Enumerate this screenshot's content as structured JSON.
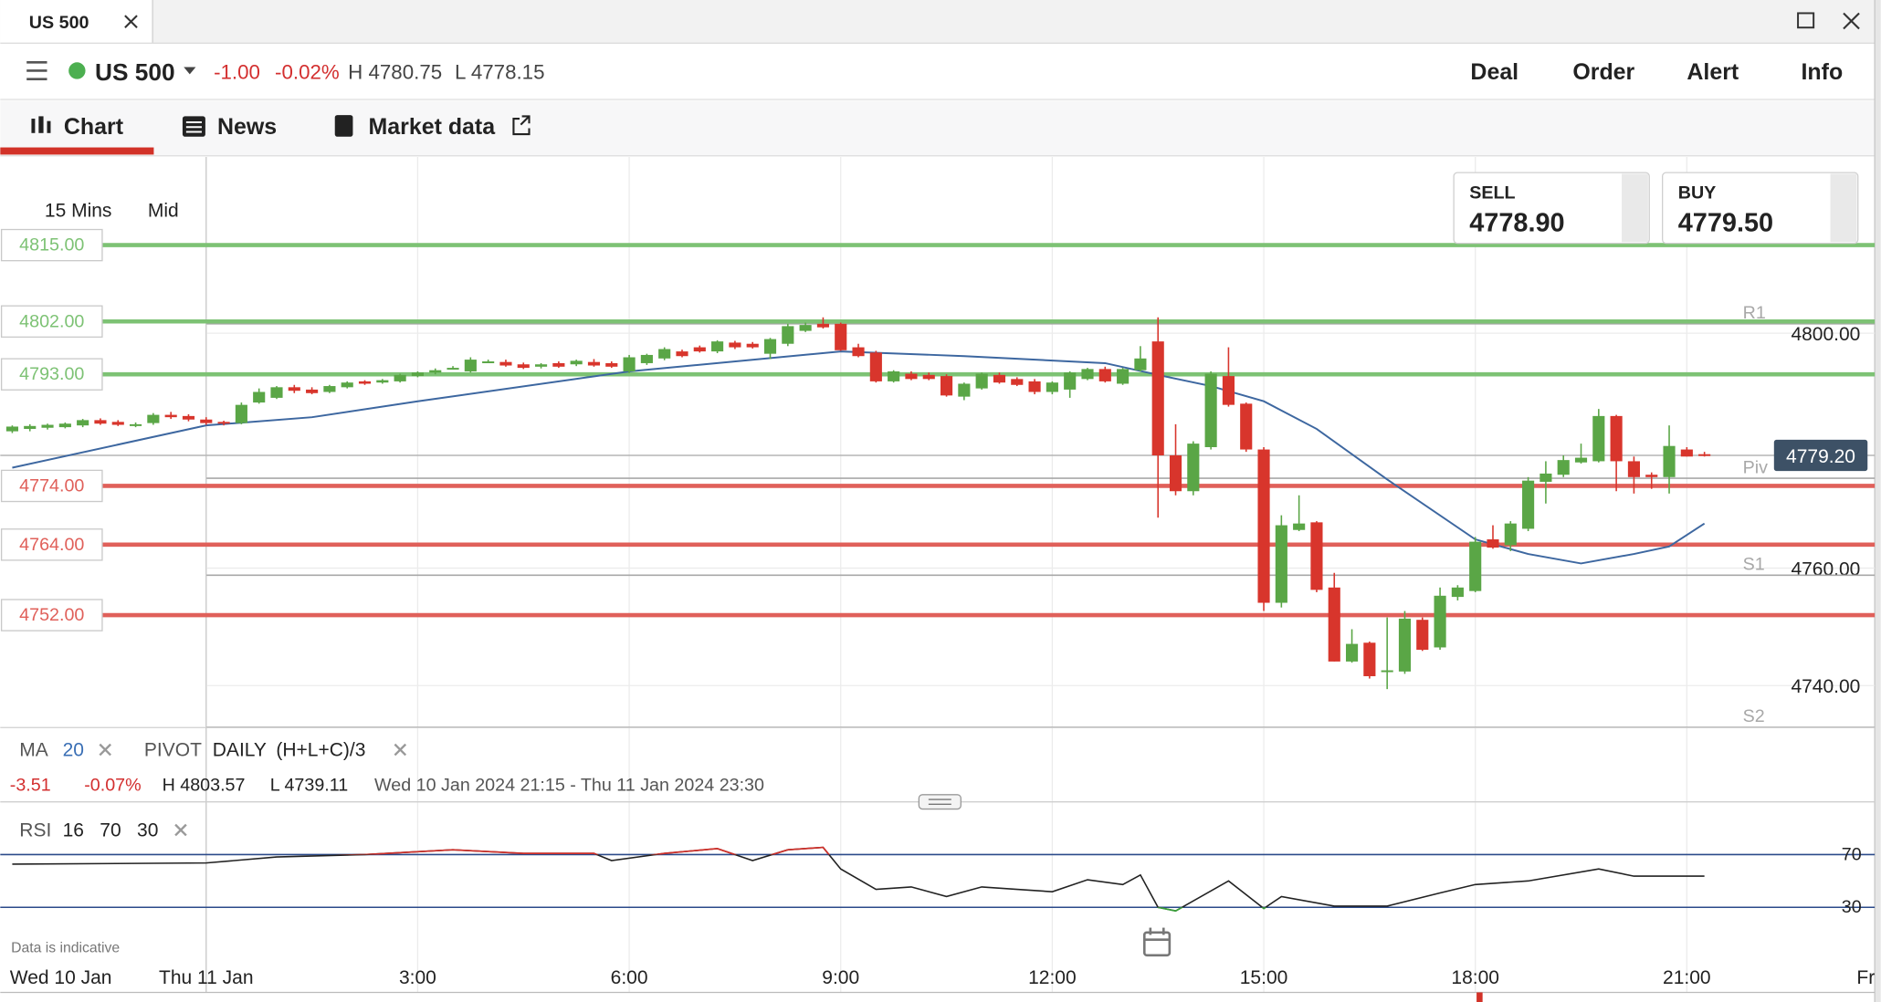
{
  "window": {
    "tab_title": "US 500"
  },
  "toolbar": {
    "instrument": "US 500",
    "change": "-1.00",
    "change_pct": "-0.02%",
    "high": "H 4780.75",
    "low": "L 4778.15",
    "actions": [
      "Deal",
      "Order",
      "Alert",
      "Info"
    ]
  },
  "tabs": [
    "Chart",
    "News",
    "Market data"
  ],
  "chart_settings": {
    "interval": "15 Mins",
    "price": "Mid"
  },
  "quote": {
    "sell_label": "SELL",
    "sell": "4778.90",
    "buy_label": "BUY",
    "buy": "4779.50"
  },
  "indicators": {
    "ma_label": "MA",
    "ma_period": "20",
    "pivot_label": "PIVOT",
    "pivot_period": "DAILY",
    "pivot_formula": "(H+L+C)/3"
  },
  "range_stats": {
    "change": "-3.51",
    "change_pct": "-0.07%",
    "high": "H 4803.57",
    "low": "L 4739.11",
    "range": "Wed 10 Jan 2024 21:15 - Thu 11 Jan 2024 23:30"
  },
  "rsi_settings": {
    "label": "RSI",
    "period": "16",
    "upper": "70",
    "lower": "30"
  },
  "note": "Data is indicative",
  "chart_data": [
    {
      "type": "candlestick",
      "categories": [
        null,
        null,
        null,
        null,
        null,
        null,
        null,
        null,
        null,
        null,
        null,
        null,
        null,
        null,
        null,
        null,
        null,
        null,
        null,
        null,
        null,
        null,
        null,
        null,
        null,
        null,
        null,
        null,
        null,
        null,
        null,
        null,
        null,
        null,
        null,
        null,
        null,
        null,
        null,
        null,
        null,
        null,
        null,
        null,
        null,
        null,
        null,
        null,
        null,
        null,
        null,
        null,
        null,
        null,
        null,
        null,
        null,
        null,
        null,
        null,
        null,
        null,
        null,
        null,
        null,
        null,
        null,
        null,
        null,
        null,
        null,
        null,
        null,
        null,
        null,
        null,
        null,
        null,
        null,
        null,
        null,
        null,
        null,
        null,
        null,
        null,
        null,
        null,
        null,
        null,
        null,
        null,
        null,
        null,
        null,
        null,
        null
      ],
      "open": [
        4783.3,
        4783.7,
        4783.9,
        4784,
        4784.3,
        4785.2,
        4784.9,
        4784.4,
        4784.7,
        4786.1,
        4785.9,
        4785.3,
        4784.9,
        4784.7,
        4788.2,
        4789,
        4790.8,
        4790.4,
        4790,
        4790.8,
        4791.8,
        4791.6,
        4791.8,
        4792.7,
        4793.3,
        4794,
        4793.5,
        4795.1,
        4795.1,
        4794.7,
        4794.3,
        4794.9,
        4794.7,
        4795.1,
        4794.9,
        4793.5,
        4794.9,
        4795.7,
        4796.9,
        4797.6,
        4796.9,
        4798.4,
        4798.2,
        4796.5,
        4798.2,
        4800.4,
        4801.6,
        4801.6,
        4797.6,
        4796.7,
        4791.8,
        4793.1,
        4792.9,
        4792.7,
        4789.2,
        4790.6,
        4792.9,
        4792.2,
        4791.8,
        4790,
        4790.4,
        4792.2,
        4793.9,
        4791.4,
        4793.7,
        4798.6,
        4779.2,
        4773.1,
        4780.6,
        4792.7,
        4788,
        4780.2,
        4754.1,
        4766.5,
        4767.8,
        4756.7,
        4744.1,
        4747.3,
        4742.4,
        4742.4,
        4751.2,
        4746.5,
        4755.1,
        4756.1,
        4764.9,
        4763.9,
        4766.7,
        4774.7,
        4775.9,
        4778,
        4778.2,
        4785.9,
        4778.2,
        4775.9,
        4775.5,
        4780.2,
        4779.4
      ],
      "high": [
        4784.3,
        4784.5,
        4784.6,
        4784.8,
        4785.4,
        4785.5,
        4785.2,
        4784.8,
        4786.4,
        4786.6,
        4786.2,
        4785.7,
        4785.1,
        4788.2,
        4790.6,
        4791,
        4791.2,
        4790.8,
        4791.2,
        4791.8,
        4792,
        4792.2,
        4793.1,
        4793.5,
        4794,
        4794.4,
        4795.9,
        4795.5,
        4795.5,
        4795,
        4794.9,
        4795.2,
        4795.5,
        4795.6,
        4795.2,
        4796.3,
        4796.5,
        4797.6,
        4797.2,
        4797.9,
        4798.8,
        4798.7,
        4798.5,
        4799.2,
        4801.6,
        4801.8,
        4802.7,
        4801.8,
        4798.2,
        4797,
        4793.7,
        4793.5,
        4793.3,
        4793,
        4791.6,
        4793.3,
        4793.3,
        4792.5,
        4792.2,
        4791.8,
        4793.5,
        4794.1,
        4794.3,
        4794.1,
        4797.8,
        4802.7,
        4784.5,
        4781.6,
        4793.5,
        4797.6,
        4788.2,
        4780.6,
        4769,
        4772.4,
        4768,
        4759.2,
        4749.6,
        4747.5,
        4751.6,
        4752.7,
        4751.6,
        4756.7,
        4757.1,
        4765.3,
        4767.3,
        4768,
        4775.5,
        4778.2,
        4779.2,
        4781.2,
        4787.1,
        4786.1,
        4779,
        4776.3,
        4784.3,
        4780.6,
        4779.8
      ],
      "low": [
        4783,
        4783.3,
        4783.6,
        4783.8,
        4784,
        4784.4,
        4784.2,
        4784,
        4784.4,
        4785.4,
        4785,
        4784.4,
        4784.3,
        4784.5,
        4788,
        4788.8,
        4789.8,
        4789.6,
        4789.8,
        4790.6,
        4791.2,
        4791.4,
        4791.6,
        4792.5,
        4793,
        4793.8,
        4793.3,
        4794.9,
        4794.3,
        4793.9,
        4794,
        4794.1,
        4794.4,
        4794.3,
        4794.1,
        4793.2,
        4794.6,
        4795.4,
        4795.9,
        4796.7,
        4796.6,
        4797.3,
        4797.4,
        4795.6,
        4797.8,
        4800.2,
        4800.8,
        4797,
        4795.9,
        4791.6,
        4791.6,
        4792,
        4792,
        4789.2,
        4788.6,
        4790.4,
        4791.4,
        4791,
        4789.6,
        4789.6,
        4789,
        4792,
        4791.6,
        4791.2,
        4793.5,
        4768.6,
        4772.4,
        4772.4,
        4780.2,
        4787.5,
        4779.8,
        4752.7,
        4753.3,
        4766.3,
        4755.9,
        4744.1,
        4743.9,
        4741.2,
        4739.4,
        4742,
        4745.9,
        4746.1,
        4754.5,
        4755.9,
        4763.3,
        4762.9,
        4766.3,
        4771,
        4775.5,
        4777.8,
        4778,
        4773.1,
        4772.7,
        4773.5,
        4772.7,
        4779,
        4779
      ],
      "close": [
        4784.1,
        4784.2,
        4784.4,
        4784.6,
        4785.2,
        4784.6,
        4784.4,
        4784.5,
        4786.1,
        4785.7,
        4785.3,
        4784.7,
        4784.6,
        4787.8,
        4790,
        4790.8,
        4790.2,
        4789.8,
        4791,
        4791.6,
        4791.4,
        4792,
        4792.9,
        4793.3,
        4793.7,
        4794.1,
        4795.5,
        4795.2,
        4794.5,
        4794.1,
        4794.7,
        4794.3,
        4795.3,
        4794.5,
        4794.3,
        4795.9,
        4796.3,
        4797.3,
        4796.1,
        4796.9,
        4798.6,
        4797.6,
        4797.6,
        4799,
        4801.2,
        4801.4,
        4801,
        4797.1,
        4796.1,
        4791.8,
        4793.5,
        4792.2,
        4792.2,
        4789.4,
        4791.4,
        4793.1,
        4791.6,
        4791.2,
        4790,
        4791.6,
        4793.3,
        4793.9,
        4791.8,
        4793.9,
        4795.7,
        4779.2,
        4773.1,
        4781.2,
        4793.1,
        4787.8,
        4780.2,
        4754.1,
        4767.3,
        4767.6,
        4756.3,
        4744.1,
        4747.1,
        4741.6,
        4742.6,
        4751.4,
        4746.1,
        4755.3,
        4756.7,
        4764.5,
        4763.5,
        4767.6,
        4774.9,
        4776.1,
        4778.4,
        4778.8,
        4785.9,
        4778.2,
        4775.5,
        4775.5,
        4780.8,
        4779,
        4779.2
      ],
      "up_color": "#5aa646",
      "down_color": "#d8352c",
      "ylim": [
        4732.86,
        4830
      ],
      "yticks": [
        {
          "value": 4800,
          "label": "4800.00"
        },
        {
          "value": 4760,
          "label": "4760.00"
        },
        {
          "value": 4740,
          "label": "4740.00"
        }
      ],
      "xticks": [
        {
          "value": 0,
          "label": "Wed 10 Jan"
        },
        {
          "value": 11,
          "label": "Thu 11 Jan"
        },
        {
          "value": 23,
          "label": "3:00"
        },
        {
          "value": 35,
          "label": "6:00"
        },
        {
          "value": 47,
          "label": "9:00"
        },
        {
          "value": 59,
          "label": "12:00"
        },
        {
          "value": 71,
          "label": "15:00"
        },
        {
          "value": 83,
          "label": "18:00"
        },
        {
          "value": 95,
          "label": "21:00"
        },
        {
          "value": 107,
          "label": "Fr"
        }
      ],
      "grid": true,
      "levels": [
        {
          "value": 4815,
          "label": "4815.00",
          "color": "#7dc274"
        },
        {
          "value": 4802,
          "label": "4802.00",
          "color": "#7dc274"
        },
        {
          "value": 4793,
          "label": "4793.00",
          "color": "#7dc274"
        },
        {
          "value": 4774,
          "label": "4774.00",
          "color": "#e0605a"
        },
        {
          "value": 4764,
          "label": "4764.00",
          "color": "#e0605a"
        },
        {
          "value": 4752,
          "label": "4752.00",
          "color": "#e0605a"
        }
      ],
      "pivots": [
        {
          "name": "R1",
          "value": 4801.6
        },
        {
          "name": "Piv",
          "value": 4775.3
        },
        {
          "name": "S1",
          "value": 4758.8
        },
        {
          "name": "S2",
          "value": 4732.9
        }
      ],
      "pivot_color": "#a8a8a8",
      "last_price": {
        "value": 4779.2,
        "label": "4779.20"
      },
      "ma": {
        "x": [
          0,
          11,
          17,
          23,
          35,
          47,
          54,
          62,
          65,
          68,
          71,
          74,
          78,
          83,
          86,
          89,
          92,
          94,
          96
        ],
        "values": [
          4777.1,
          4784.3,
          4785.7,
          4788.4,
          4793.5,
          4796.9,
          4796.1,
          4794.9,
          4792.9,
          4791,
          4788.4,
          4783.7,
          4775.1,
          4764.9,
          4762.4,
          4760.8,
          4762.4,
          4763.7,
          4767.6
        ],
        "color": "#3d67a0"
      }
    },
    {
      "type": "line",
      "x": [
        0,
        11,
        15,
        20,
        25,
        29,
        33,
        34,
        37,
        40,
        42,
        44,
        46,
        47,
        49,
        51,
        53,
        55,
        57,
        59,
        61,
        63,
        64,
        65,
        66,
        69,
        71,
        72,
        75,
        78,
        81,
        83,
        86,
        90,
        92,
        96
      ],
      "values": [
        62.7,
        63.6,
        68.2,
        70,
        73.6,
        70.9,
        70.9,
        65.5,
        70.9,
        74.5,
        65.5,
        73.6,
        75.5,
        59.1,
        43.6,
        45.5,
        38.2,
        45.5,
        43.6,
        41.8,
        50.9,
        47.3,
        54.5,
        30,
        27.3,
        50,
        29.1,
        38.2,
        30.9,
        30.9,
        40.9,
        47.3,
        50,
        59.1,
        53.6,
        53.6
      ],
      "color": "#222222",
      "overbought_color": "#d0302a",
      "oversold_color": "#3aa03a",
      "band_color": "#2b4a8a",
      "ylim": [
        0,
        100
      ],
      "yticks": [
        70,
        30
      ]
    }
  ]
}
